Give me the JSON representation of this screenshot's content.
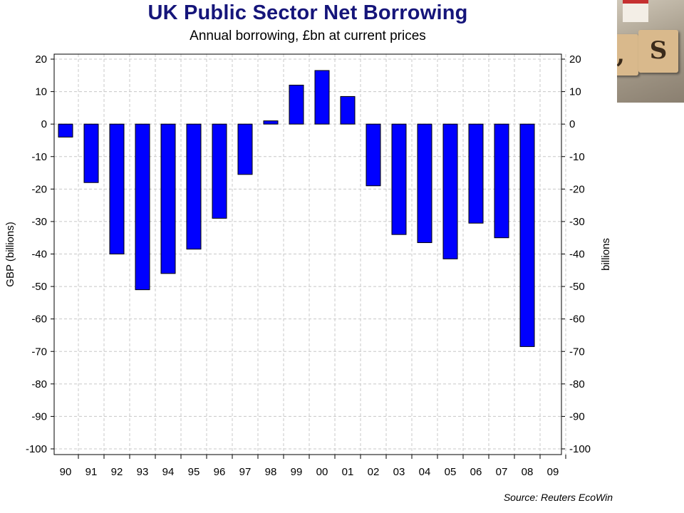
{
  "title": "UK Public Sector Net Borrowing",
  "subtitle": "Annual borrowing, £bn at current prices",
  "source": "Source: Reuters EcoWin",
  "photo": {
    "tile_letter": "S",
    "tile_letter_partial": ","
  },
  "colors": {
    "bar": "#0000ff",
    "title": "#15157a",
    "grid": "#c8c8c8"
  },
  "chart_data": {
    "type": "bar",
    "title": "UK Public Sector Net Borrowing",
    "subtitle": "Annual borrowing, £bn at current prices",
    "categories": [
      "90",
      "91",
      "92",
      "93",
      "94",
      "95",
      "96",
      "97",
      "98",
      "99",
      "00",
      "01",
      "02",
      "03",
      "04",
      "05",
      "06",
      "07",
      "08",
      "09"
    ],
    "values": [
      -4,
      -18,
      -40,
      -51,
      -46,
      -38.5,
      -29,
      -15.5,
      1,
      12,
      16.5,
      8.5,
      -19,
      -34,
      -36.5,
      -41.5,
      -30.5,
      -35,
      -68.5,
      null
    ],
    "ylabel": "GBP (billions)",
    "ylabel_right": "billions",
    "ylim": [
      -100,
      20
    ],
    "yticks": [
      20,
      10,
      0,
      -10,
      -20,
      -30,
      -40,
      -50,
      -60,
      -70,
      -80,
      -90,
      -100
    ],
    "grid": true,
    "legend": "none"
  }
}
